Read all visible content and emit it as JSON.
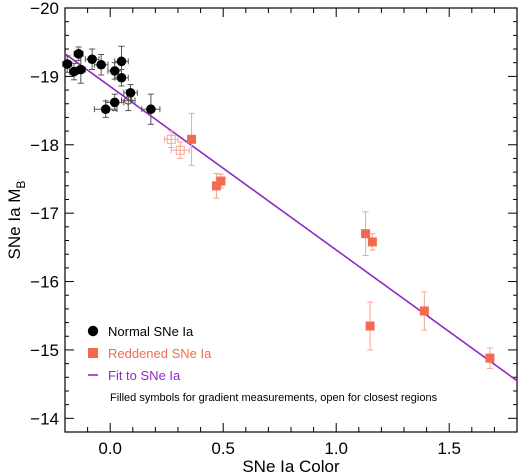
{
  "chart_data": {
    "type": "scatter",
    "xlabel": "SNe Ia Color",
    "ylabel_main": "SNe Ia M",
    "ylabel_sub": "B",
    "xlim": [
      -0.2,
      1.8
    ],
    "ylim": [
      -20,
      -13.8
    ],
    "y_inverted": true,
    "grid": false,
    "xticks": [
      0.0,
      0.5,
      1.0,
      1.5
    ],
    "xtick_labels": [
      "0.0",
      "0.5",
      "1.0",
      "1.5"
    ],
    "yticks": [
      -20,
      -19,
      -18,
      -17,
      -16,
      -15,
      -14
    ],
    "ytick_labels": [
      "−20",
      "−19",
      "−18",
      "−17",
      "−16",
      "−15",
      "−14"
    ],
    "colors": {
      "normal": "#000000",
      "reddened": "#f26b4e",
      "reddened_err": "#f7a590",
      "fit": "#8f2bc4",
      "normal_err": "#555555"
    },
    "series": [
      {
        "name": "Normal SNe Ia",
        "marker": "circle",
        "points": [
          {
            "x": -0.19,
            "y": -19.18,
            "ey": 0.12,
            "ex": 0.02,
            "filled": true
          },
          {
            "x": -0.16,
            "y": -19.07,
            "ey": 0.12,
            "ex": 0.02,
            "filled": true
          },
          {
            "x": -0.14,
            "y": -19.33,
            "ey": 0.1,
            "ex": 0.02,
            "filled": true
          },
          {
            "x": -0.13,
            "y": -19.1,
            "ey": 0.2,
            "ex": 0.02,
            "filled": true
          },
          {
            "x": -0.08,
            "y": -19.25,
            "ey": 0.15,
            "ex": 0.03,
            "filled": true
          },
          {
            "x": -0.04,
            "y": -19.17,
            "ey": 0.15,
            "ex": 0.03,
            "filled": true
          },
          {
            "x": -0.02,
            "y": -18.52,
            "ey": 0.12,
            "ex": 0.05,
            "filled": true
          },
          {
            "x": 0.02,
            "y": -19.08,
            "ey": 0.12,
            "ex": 0.03,
            "filled": true
          },
          {
            "x": 0.02,
            "y": -18.62,
            "ey": 0.12,
            "ex": 0.04,
            "filled": true
          },
          {
            "x": 0.05,
            "y": -18.98,
            "ey": 0.12,
            "ex": 0.03,
            "filled": true
          },
          {
            "x": 0.05,
            "y": -19.22,
            "ey": 0.22,
            "ex": 0.03,
            "filled": true
          },
          {
            "x": 0.09,
            "y": -18.76,
            "ey": 0.12,
            "ex": 0.03,
            "filled": true
          },
          {
            "x": 0.08,
            "y": -18.65,
            "ey": 0.15,
            "ex": 0.03,
            "filled": false
          },
          {
            "x": 0.18,
            "y": -18.52,
            "ey": 0.22,
            "ex": 0.04,
            "filled": true
          }
        ]
      },
      {
        "name": "Reddened SNe Ia",
        "marker": "square",
        "points": [
          {
            "x": 0.27,
            "y": -18.08,
            "ey": 0.12,
            "ex": 0.03,
            "filled": false
          },
          {
            "x": 0.31,
            "y": -17.92,
            "ey": 0.12,
            "ex": 0.04,
            "filled": false
          },
          {
            "x": 0.36,
            "y": -18.08,
            "ey": 0.38,
            "ex": 0.0,
            "filled": true
          },
          {
            "x": 0.47,
            "y": -17.4,
            "ey": 0.18,
            "ex": 0.0,
            "filled": true
          },
          {
            "x": 0.49,
            "y": -17.47,
            "ey": 0.1,
            "ex": 0.0,
            "filled": true
          },
          {
            "x": 1.13,
            "y": -16.7,
            "ey": 0.32,
            "ex": 0.0,
            "filled": true
          },
          {
            "x": 1.16,
            "y": -16.58,
            "ey": 0.12,
            "ex": 0.0,
            "filled": true
          },
          {
            "x": 1.15,
            "y": -15.35,
            "ey": 0.35,
            "ex": 0.0,
            "filled": true
          },
          {
            "x": 1.39,
            "y": -15.57,
            "ey": 0.28,
            "ex": 0.0,
            "filled": true
          },
          {
            "x": 1.68,
            "y": -14.88,
            "ey": 0.15,
            "ex": 0.0,
            "filled": true
          }
        ]
      }
    ],
    "fit": {
      "name": "Fit to SNe Ia",
      "x": [
        -0.2,
        1.8
      ],
      "y": [
        -19.33,
        -14.55
      ]
    },
    "legend": {
      "position": "bottom-left",
      "entries": [
        {
          "label": "Normal SNe Ia",
          "marker": "circle",
          "color": "#000000",
          "text_color": "#000000"
        },
        {
          "label": "Reddened SNe Ia",
          "marker": "square",
          "color": "#f26b4e",
          "text_color": "#f26b4e"
        },
        {
          "label": "Fit to SNe Ia",
          "marker": "line",
          "color": "#8f2bc4",
          "text_color": "#8f2bc4"
        }
      ],
      "note": "Filled symbols for gradient measurements, open for closest regions"
    }
  }
}
